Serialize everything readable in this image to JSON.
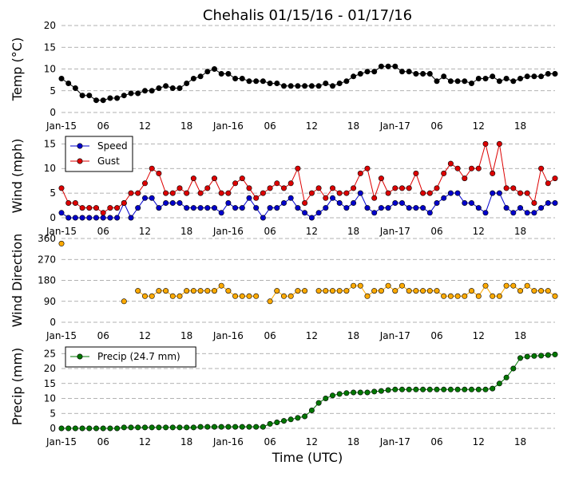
{
  "figure": {
    "title": "Chehalis 01/15/16 - 01/17/16",
    "xlabel": "Time (UTC)"
  },
  "chart_data": [
    {
      "type": "line",
      "ylabel": "Temp (°C)",
      "ylim": [
        0,
        20
      ],
      "yticks": [
        "0",
        "5",
        "10",
        "15",
        "20"
      ],
      "x_range_hours": [
        0,
        71
      ],
      "x_tick_hours": [
        0,
        6,
        12,
        18,
        24,
        30,
        36,
        42,
        48,
        54,
        60,
        66
      ],
      "x_tick_labels": [
        "Jan-15",
        "06",
        "12",
        "18",
        "Jan-16",
        "06",
        "12",
        "18",
        "Jan-17",
        "06",
        "12",
        "18"
      ],
      "grid": "horizontal dashed",
      "legend": "none",
      "series": [
        {
          "color": "#000000",
          "x": [
            0,
            1,
            2,
            3,
            4,
            5,
            6,
            7,
            8,
            9,
            10,
            11,
            12,
            13,
            14,
            15,
            16,
            17,
            18,
            19,
            20,
            21,
            22,
            23,
            24,
            25,
            26,
            27,
            28,
            29,
            30,
            31,
            32,
            33,
            34,
            35,
            36,
            37,
            38,
            39,
            40,
            41,
            42,
            43,
            44,
            45,
            46,
            47,
            48,
            49,
            50,
            51,
            52,
            53,
            54,
            55,
            56,
            57,
            58,
            59,
            60,
            61,
            62,
            63,
            64,
            65,
            66,
            67,
            68,
            69,
            70,
            71
          ],
          "values": [
            7.8,
            6.7,
            5.6,
            3.9,
            3.9,
            2.8,
            2.8,
            3.3,
            3.3,
            3.9,
            4.4,
            4.4,
            5,
            5,
            5.6,
            6.1,
            5.6,
            5.6,
            6.7,
            7.8,
            8.3,
            9.4,
            10,
            8.9,
            8.9,
            7.8,
            7.8,
            7.2,
            7.2,
            7.2,
            6.7,
            6.7,
            6.1,
            6.1,
            6.1,
            6.1,
            6.1,
            6.1,
            6.7,
            6.1,
            6.7,
            7.2,
            8.3,
            8.9,
            9.4,
            9.4,
            10.6,
            10.6,
            10.6,
            9.4,
            9.4,
            8.9,
            8.9,
            8.9,
            7.2,
            8.3,
            7.2,
            7.2,
            7.2,
            6.7,
            7.8,
            7.8,
            8.3,
            7.2,
            7.8,
            7.2,
            7.8,
            8.3,
            8.3,
            8.3,
            8.9,
            8.9
          ]
        }
      ]
    },
    {
      "type": "line",
      "ylabel": "Wind (mph)",
      "ylim": [
        0,
        17
      ],
      "yticks": [
        "0",
        "5",
        "10",
        "15"
      ],
      "x_range_hours": [
        0,
        71
      ],
      "x_tick_hours": [
        0,
        6,
        12,
        18,
        24,
        30,
        36,
        42,
        48,
        54,
        60,
        66
      ],
      "x_tick_labels": [
        "Jan-15",
        "06",
        "12",
        "18",
        "Jan-16",
        "06",
        "12",
        "18",
        "Jan-17",
        "06",
        "12",
        "18"
      ],
      "grid": "horizontal dashed",
      "legend": "top-left",
      "series": [
        {
          "name": "Speed",
          "color": "#0000cc",
          "x": [
            0,
            1,
            2,
            3,
            4,
            5,
            6,
            7,
            8,
            9,
            10,
            11,
            12,
            13,
            14,
            15,
            16,
            17,
            18,
            19,
            20,
            21,
            22,
            23,
            24,
            25,
            26,
            27,
            28,
            29,
            30,
            31,
            32,
            33,
            34,
            35,
            36,
            37,
            38,
            39,
            40,
            41,
            42,
            43,
            44,
            45,
            46,
            47,
            48,
            49,
            50,
            51,
            52,
            53,
            54,
            55,
            56,
            57,
            58,
            59,
            60,
            61,
            62,
            63,
            64,
            65,
            66,
            67,
            68,
            69,
            70,
            71
          ],
          "values": [
            1,
            0,
            0,
            0,
            0,
            0,
            0,
            0,
            0,
            3,
            0,
            2,
            4,
            4,
            2,
            3,
            3,
            3,
            2,
            2,
            2,
            2,
            2,
            1,
            3,
            2,
            2,
            4,
            2,
            0,
            2,
            2,
            3,
            4,
            2,
            1,
            0,
            1,
            2,
            4,
            3,
            2,
            3,
            5,
            2,
            1,
            2,
            2,
            3,
            3,
            2,
            2,
            2,
            1,
            3,
            4,
            5,
            5,
            3,
            3,
            2,
            1,
            5,
            5,
            2,
            1,
            2,
            1,
            1,
            2,
            3,
            3
          ]
        },
        {
          "name": "Gust",
          "color": "#dd0000",
          "x": [
            0,
            1,
            2,
            3,
            4,
            5,
            6,
            7,
            8,
            9,
            10,
            11,
            12,
            13,
            14,
            15,
            16,
            17,
            18,
            19,
            20,
            21,
            22,
            23,
            24,
            25,
            26,
            27,
            28,
            29,
            30,
            31,
            32,
            33,
            34,
            35,
            36,
            37,
            38,
            39,
            40,
            41,
            42,
            43,
            44,
            45,
            46,
            47,
            48,
            49,
            50,
            51,
            52,
            53,
            54,
            55,
            56,
            57,
            58,
            59,
            60,
            61,
            62,
            63,
            64,
            65,
            66,
            67,
            68,
            69,
            70,
            71
          ],
          "values": [
            6,
            3,
            3,
            2,
            2,
            2,
            1,
            2,
            2,
            3,
            5,
            5,
            7,
            10,
            9,
            5,
            5,
            6,
            5,
            8,
            5,
            6,
            8,
            5,
            5,
            7,
            8,
            6,
            4,
            5,
            6,
            7,
            6,
            7,
            10,
            3,
            5,
            6,
            4,
            6,
            5,
            5,
            6,
            9,
            10,
            4,
            8,
            5,
            6,
            6,
            6,
            9,
            5,
            5,
            6,
            9,
            11,
            10,
            8,
            10,
            10,
            15,
            9,
            15,
            6,
            6,
            5,
            5,
            3,
            10,
            7,
            8
          ]
        }
      ]
    },
    {
      "type": "line",
      "ylabel": "Wind Direction",
      "ylim": [
        0,
        360
      ],
      "yticks": [
        "0",
        "90",
        "180",
        "270",
        "360"
      ],
      "x_range_hours": [
        0,
        71
      ],
      "x_tick_hours": [
        0,
        6,
        12,
        18,
        24,
        30,
        36,
        42,
        48,
        54,
        60,
        66
      ],
      "x_tick_labels": [
        "Jan-15",
        "06",
        "12",
        "18",
        "Jan-16",
        "06",
        "12",
        "18",
        "Jan-17",
        "06",
        "12",
        "18"
      ],
      "grid": "horizontal dashed",
      "legend": "none",
      "series": [
        {
          "color": "#ffaa00",
          "x": [
            0,
            1,
            2,
            3,
            4,
            5,
            6,
            7,
            8,
            9,
            10,
            11,
            12,
            13,
            14,
            15,
            16,
            17,
            18,
            19,
            20,
            21,
            22,
            23,
            24,
            25,
            26,
            27,
            28,
            29,
            30,
            31,
            32,
            33,
            34,
            35,
            36,
            37,
            38,
            39,
            40,
            41,
            42,
            43,
            44,
            45,
            46,
            47,
            48,
            49,
            50,
            51,
            52,
            53,
            54,
            55,
            56,
            57,
            58,
            59,
            60,
            61,
            62,
            63,
            64,
            65,
            66,
            67,
            68,
            69,
            70,
            71
          ],
          "values": [
            338,
            null,
            null,
            null,
            null,
            null,
            null,
            null,
            null,
            90,
            null,
            135,
            112,
            112,
            135,
            135,
            112,
            112,
            135,
            135,
            135,
            135,
            135,
            157,
            135,
            112,
            112,
            112,
            112,
            null,
            90,
            135,
            112,
            112,
            135,
            135,
            null,
            135,
            135,
            135,
            135,
            135,
            157,
            157,
            112,
            135,
            135,
            157,
            135,
            157,
            135,
            135,
            135,
            135,
            135,
            112,
            112,
            112,
            112,
            135,
            112,
            157,
            112,
            112,
            157,
            157,
            135,
            157,
            135,
            135,
            135,
            112
          ]
        }
      ]
    },
    {
      "type": "line",
      "ylabel": "Precip (mm)",
      "ylim": [
        0,
        28
      ],
      "yticks": [
        "0",
        "5",
        "10",
        "15",
        "20",
        "25"
      ],
      "x_range_hours": [
        0,
        71
      ],
      "x_tick_hours": [
        0,
        6,
        12,
        18,
        24,
        30,
        36,
        42,
        48,
        54,
        60,
        66
      ],
      "x_tick_labels": [
        "Jan-15",
        "06",
        "12",
        "18",
        "Jan-16",
        "06",
        "12",
        "18",
        "Jan-17",
        "06",
        "12",
        "18"
      ],
      "grid": "horizontal dashed",
      "legend": "top-left",
      "series": [
        {
          "name": "Precip (24.7 mm)",
          "color": "#007700",
          "x": [
            0,
            1,
            2,
            3,
            4,
            5,
            6,
            7,
            8,
            9,
            10,
            11,
            12,
            13,
            14,
            15,
            16,
            17,
            18,
            19,
            20,
            21,
            22,
            23,
            24,
            25,
            26,
            27,
            28,
            29,
            30,
            31,
            32,
            33,
            34,
            35,
            36,
            37,
            38,
            39,
            40,
            41,
            42,
            43,
            44,
            45,
            46,
            47,
            48,
            49,
            50,
            51,
            52,
            53,
            54,
            55,
            56,
            57,
            58,
            59,
            60,
            61,
            62,
            63,
            64,
            65,
            66,
            67,
            68,
            69,
            70,
            71
          ],
          "values": [
            0,
            0,
            0,
            0,
            0,
            0,
            0,
            0,
            0,
            0.3,
            0.3,
            0.3,
            0.3,
            0.3,
            0.3,
            0.3,
            0.3,
            0.3,
            0.3,
            0.3,
            0.5,
            0.5,
            0.5,
            0.5,
            0.5,
            0.5,
            0.5,
            0.5,
            0.5,
            0.5,
            1.5,
            2,
            2.5,
            3,
            3.5,
            4,
            6,
            8.5,
            10,
            11,
            11.5,
            11.8,
            12,
            12,
            12,
            12.3,
            12.5,
            12.8,
            13,
            13,
            13,
            13,
            13,
            13,
            13,
            13,
            13,
            13,
            13,
            13,
            13,
            13,
            13.3,
            15,
            17,
            20,
            23.5,
            24,
            24.2,
            24.3,
            24.5,
            24.7
          ]
        }
      ]
    }
  ]
}
